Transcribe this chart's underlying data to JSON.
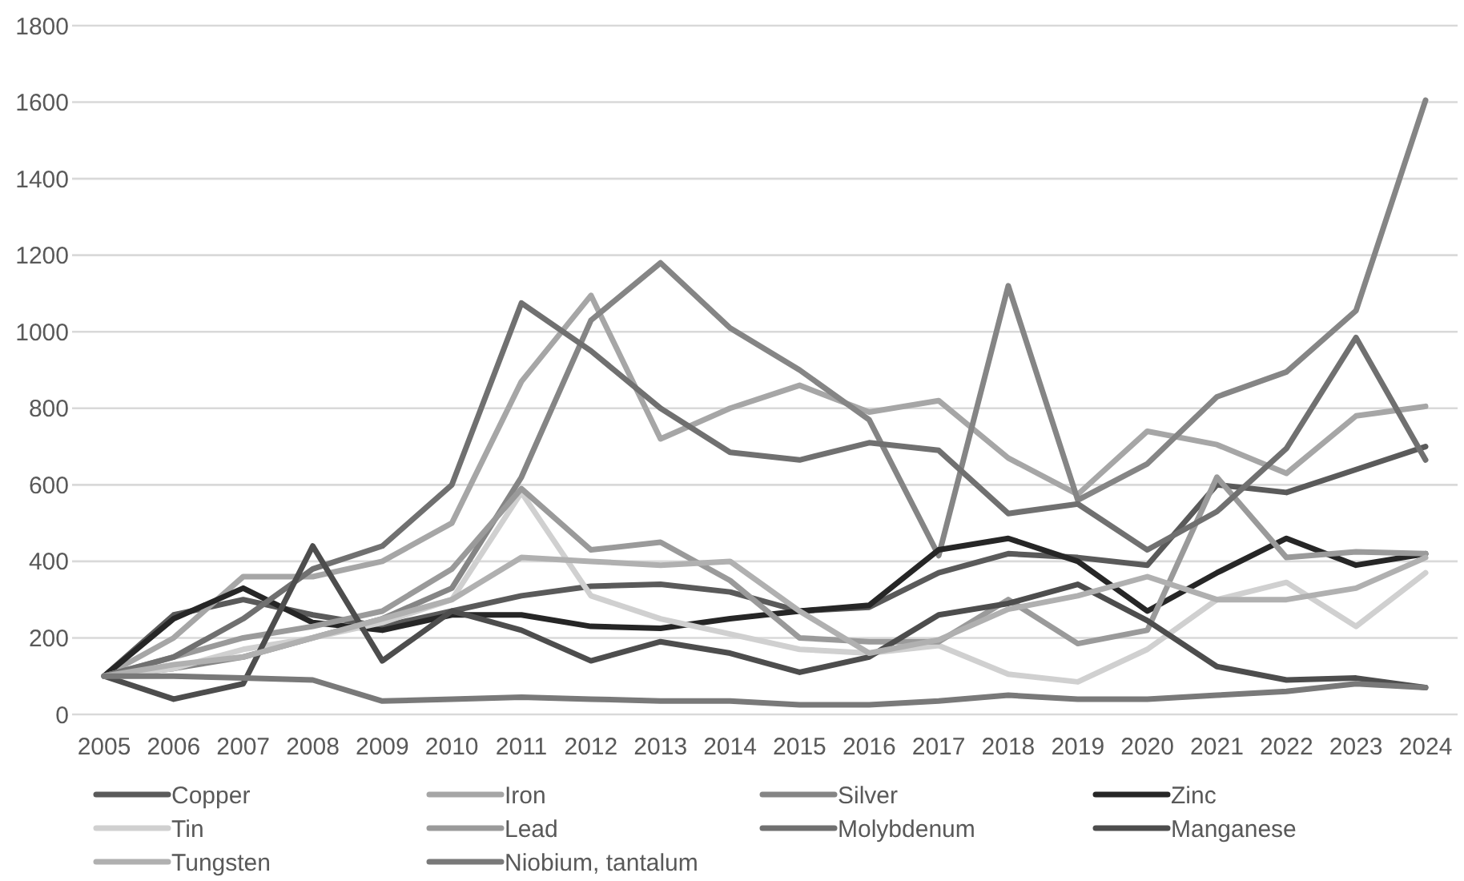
{
  "chart_data": {
    "type": "line",
    "categories": [
      "2005",
      "2006",
      "2007",
      "2008",
      "2009",
      "2010",
      "2011",
      "2012",
      "2013",
      "2014",
      "2015",
      "2016",
      "2017",
      "2018",
      "2019",
      "2020",
      "2021",
      "2022",
      "2023",
      "2024"
    ],
    "ylim": [
      0,
      1800
    ],
    "yticks": [
      0,
      200,
      400,
      600,
      800,
      1000,
      1200,
      1400,
      1600,
      1800
    ],
    "grid": "y",
    "legend": "bottom",
    "line_style": "solid",
    "marker": "none",
    "series": [
      {
        "name": "Copper",
        "color": "#5a5a5a",
        "values": [
          100,
          260,
          300,
          260,
          230,
          270,
          310,
          335,
          340,
          320,
          270,
          280,
          370,
          420,
          410,
          390,
          600,
          580,
          640,
          700
        ]
      },
      {
        "name": "Iron",
        "color": "#a6a6a6",
        "values": [
          100,
          200,
          360,
          360,
          400,
          500,
          870,
          1095,
          720,
          800,
          860,
          790,
          820,
          670,
          575,
          740,
          705,
          630,
          780,
          805
        ]
      },
      {
        "name": "Silver",
        "color": "#858585",
        "values": [
          100,
          120,
          150,
          200,
          250,
          330,
          620,
          1030,
          1180,
          1010,
          900,
          770,
          415,
          1120,
          560,
          655,
          830,
          895,
          1055,
          1605
        ]
      },
      {
        "name": "Zinc",
        "color": "#262626",
        "values": [
          100,
          250,
          330,
          240,
          220,
          260,
          260,
          230,
          225,
          250,
          270,
          285,
          430,
          460,
          400,
          270,
          370,
          460,
          390,
          420
        ]
      },
      {
        "name": "Tin",
        "color": "#d0d0d0",
        "values": [
          100,
          120,
          170,
          200,
          240,
          300,
          580,
          310,
          250,
          210,
          170,
          160,
          180,
          105,
          85,
          170,
          300,
          345,
          230,
          370
        ]
      },
      {
        "name": "Lead",
        "color": "#9a9a9a",
        "values": [
          100,
          150,
          200,
          230,
          270,
          380,
          590,
          430,
          450,
          350,
          200,
          190,
          190,
          300,
          185,
          220,
          620,
          410,
          425,
          420
        ]
      },
      {
        "name": "Molybdenum",
        "color": "#707070",
        "values": [
          100,
          150,
          250,
          380,
          440,
          600,
          1075,
          950,
          800,
          685,
          665,
          710,
          690,
          525,
          550,
          430,
          530,
          695,
          985,
          665
        ]
      },
      {
        "name": "Manganese",
        "color": "#4d4d4d",
        "values": [
          100,
          40,
          80,
          440,
          140,
          270,
          220,
          140,
          190,
          160,
          110,
          150,
          260,
          290,
          340,
          245,
          125,
          90,
          95,
          70
        ]
      },
      {
        "name": "Tungsten",
        "color": "#b0b0b0",
        "values": [
          100,
          130,
          150,
          200,
          250,
          300,
          410,
          400,
          390,
          400,
          270,
          160,
          195,
          275,
          310,
          360,
          300,
          300,
          330,
          410
        ]
      },
      {
        "name": "Niobium, tantalum",
        "color": "#797979",
        "values": [
          100,
          100,
          95,
          90,
          35,
          40,
          45,
          40,
          35,
          35,
          25,
          25,
          35,
          50,
          40,
          40,
          50,
          60,
          80,
          70
        ]
      }
    ]
  }
}
